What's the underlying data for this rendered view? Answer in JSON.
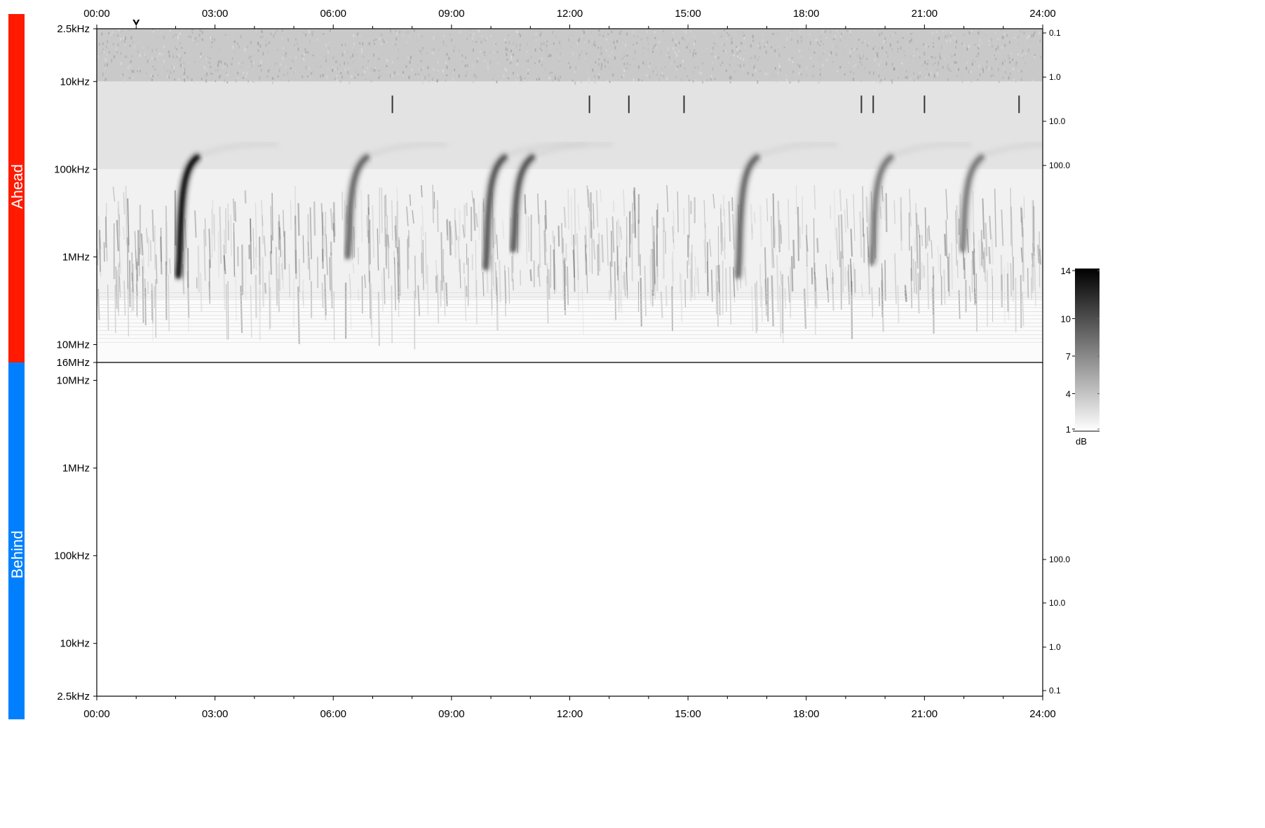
{
  "chart_data": {
    "type": "heatmap",
    "time_axis": {
      "ticks": [
        "00:00",
        "03:00",
        "06:00",
        "09:00",
        "12:00",
        "15:00",
        "18:00",
        "21:00",
        "24:00"
      ],
      "range_hours": [
        0,
        24
      ],
      "minor_tick_interval_hours": 1,
      "marker_hour": 1.0
    },
    "panels": [
      {
        "label": "Ahead",
        "label_color": "#ff1a00",
        "freq_ticks": [
          "2.5kHz",
          "10kHz",
          "100kHz",
          "1MHz",
          "10MHz",
          "16MHz"
        ],
        "freq_tick_values_hz": [
          2500,
          10000,
          100000,
          1000000,
          10000000,
          16000000
        ],
        "right_ticks": [
          "0.1",
          "1.0",
          "10.0",
          "100.0"
        ],
        "data": "spectrogram",
        "features": [
          {
            "start_hour": 2.1,
            "peak_freq_hz": 1000000,
            "intensity_db": 14
          },
          {
            "start_hour": 6.4,
            "peak_freq_hz": 600000,
            "intensity_db": 9
          },
          {
            "start_hour": 9.9,
            "peak_freq_hz": 800000,
            "intensity_db": 10
          },
          {
            "start_hour": 10.6,
            "peak_freq_hz": 500000,
            "intensity_db": 10
          },
          {
            "start_hour": 16.3,
            "peak_freq_hz": 1000000,
            "intensity_db": 9
          },
          {
            "start_hour": 19.7,
            "peak_freq_hz": 700000,
            "intensity_db": 8
          },
          {
            "start_hour": 22.0,
            "peak_freq_hz": 500000,
            "intensity_db": 8
          }
        ]
      },
      {
        "label": "Behind",
        "label_color": "#0080ff",
        "freq_ticks": [
          "10MHz",
          "1MHz",
          "100kHz",
          "10kHz",
          "2.5kHz"
        ],
        "freq_tick_values_hz": [
          10000000,
          1000000,
          100000,
          10000,
          2500
        ],
        "right_ticks": [
          "100.0",
          "10.0",
          "1.0",
          "0.1"
        ],
        "data": "empty"
      }
    ],
    "colorbar": {
      "ticks": [
        "14",
        "10",
        "7",
        "4",
        "1"
      ],
      "tick_values": [
        14,
        10,
        7,
        4,
        1
      ],
      "range": [
        1,
        14
      ],
      "unit": "dB",
      "colormap": "grayscale"
    }
  }
}
